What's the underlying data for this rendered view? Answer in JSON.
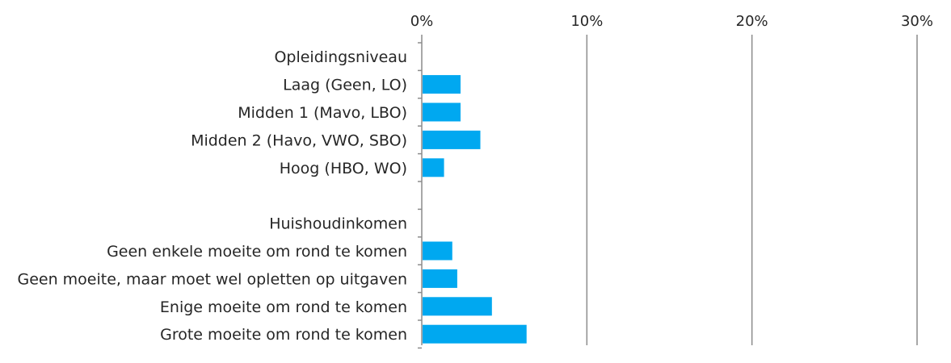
{
  "chart_data": {
    "type": "bar",
    "orientation": "horizontal",
    "title": "",
    "xlabel": "",
    "ylabel": "",
    "xlim": [
      0,
      30
    ],
    "x_ticks": [
      0,
      10,
      20,
      30
    ],
    "x_tick_labels": [
      "0%",
      "10%",
      "20%",
      "30%"
    ],
    "x_axis_position": "top",
    "grid": true,
    "bar_color": "#00a8f0",
    "grid_color": "#8c8c8c",
    "categories": [
      "Opleidingsniveau",
      "Laag (Geen, LO)",
      "Midden 1 (Mavo, LBO)",
      "Midden 2 (Havo, VWO, SBO)",
      "Hoog (HBO, WO)",
      "",
      "Huishoudinkomen",
      "Geen enkele moeite om rond te komen",
      "Geen moeite, maar moet wel opletten op uitgaven",
      "Enige moeite om rond te komen",
      "Grote moeite om rond te komen"
    ],
    "values": [
      null,
      2.3,
      2.3,
      3.5,
      1.3,
      null,
      null,
      1.8,
      2.1,
      4.2,
      6.3
    ]
  }
}
